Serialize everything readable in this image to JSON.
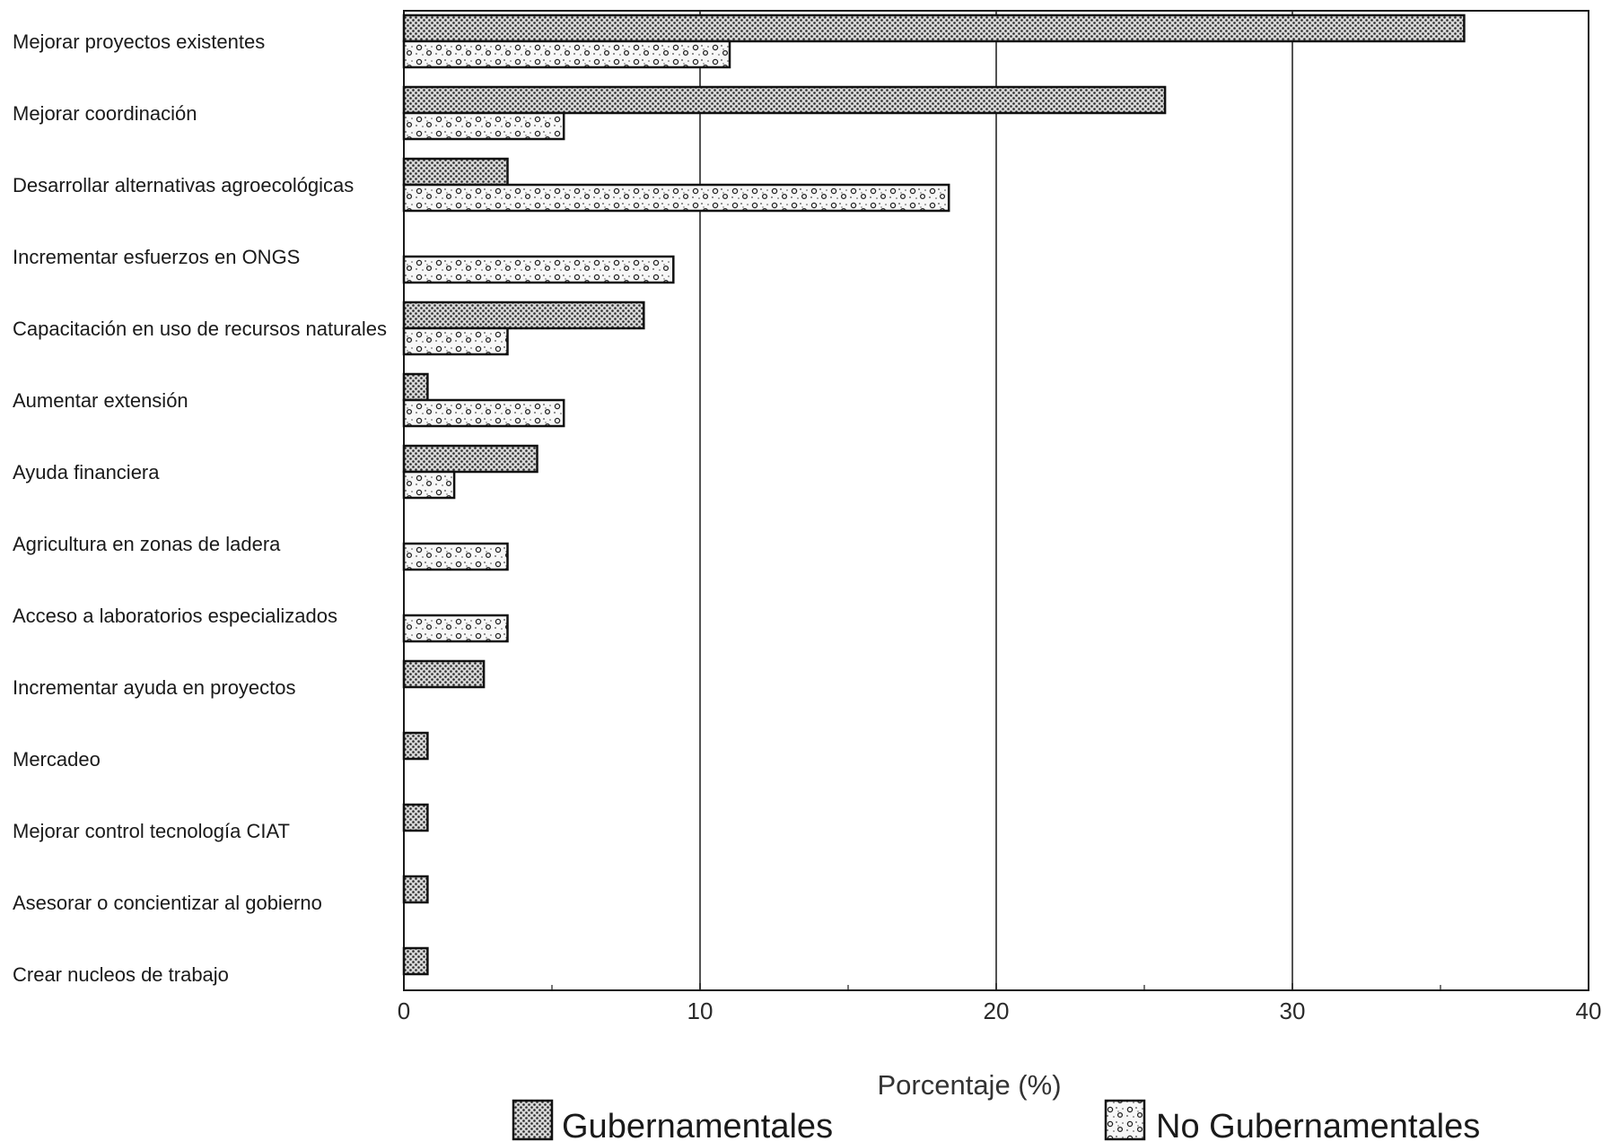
{
  "chart_data": {
    "type": "bar",
    "orientation": "horizontal",
    "categories": [
      "Mejorar proyectos existentes",
      "Mejorar coordinación",
      "Desarrollar alternativas agroecológicas",
      "Incrementar esfuerzos en ONGS",
      "Capacitación en uso de recursos naturales",
      "Aumentar extensión",
      "Ayuda financiera",
      "Agricultura en zonas de ladera",
      "Acceso a laboratorios especializados",
      "Incrementar ayuda en proyectos",
      "Mercadeo",
      "Mejorar control tecnología CIAT",
      "Asesorar o concientizar al gobierno",
      "Crear nucleos de trabajo"
    ],
    "series": [
      {
        "name": "Gubernamentales",
        "pattern": "dense-dots",
        "values": [
          35.8,
          25.7,
          3.5,
          0,
          8.1,
          0.8,
          4.5,
          0,
          0,
          2.7,
          0.8,
          0.8,
          0.8,
          0.8
        ]
      },
      {
        "name": "No Gubernamentales",
        "pattern": "sparse-circles",
        "values": [
          11.0,
          5.4,
          18.4,
          9.1,
          3.5,
          5.4,
          1.7,
          3.5,
          3.5,
          0,
          0,
          0,
          0,
          0
        ]
      }
    ],
    "xlabel": "Porcentaje (%)",
    "ylabel": "",
    "title": "",
    "xlim": [
      0,
      40
    ],
    "xticks": [
      "0",
      "10",
      "20",
      "30",
      "40"
    ],
    "grid": "vertical",
    "legend_position": "bottom",
    "colors": {
      "ink": "#1a1a1a",
      "background": "#ffffff"
    }
  }
}
